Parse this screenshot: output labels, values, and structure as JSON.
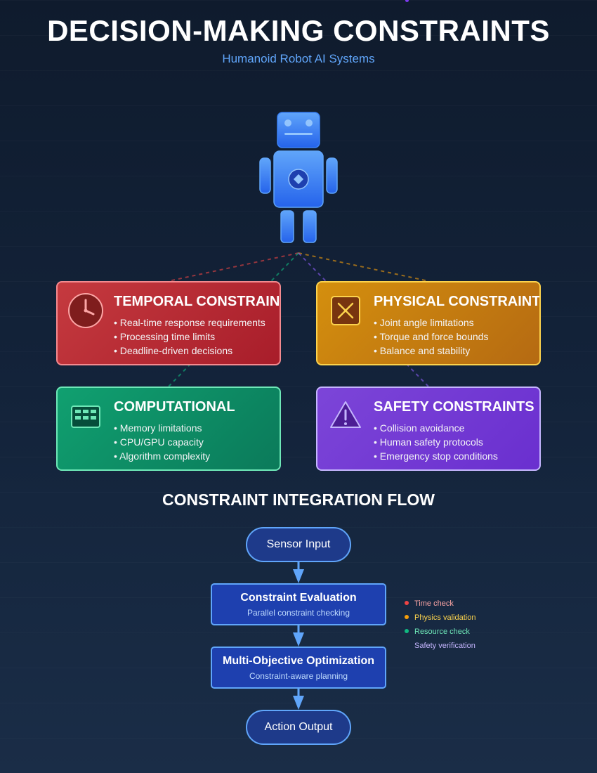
{
  "header": {
    "title": "DECISION-MAKING CONSTRAINTS",
    "subtitle": "Humanoid Robot AI Systems"
  },
  "colors": {
    "temporal": "#ef4444",
    "physical": "#f59e0b",
    "computational": "#10b981",
    "safety": "#8b5cf6",
    "flow_accent": "#60a5fa"
  },
  "cards": {
    "temporal": {
      "title": "TEMPORAL CONSTRAINTS",
      "icon": "clock-icon",
      "items": [
        "Real-time response requirements",
        "Processing time limits",
        "Deadline-driven decisions"
      ]
    },
    "physical": {
      "title": "PHYSICAL CONSTRAINTS",
      "icon": "joint-cross-icon",
      "items": [
        "Joint angle limitations",
        "Torque and force bounds",
        "Balance and stability"
      ]
    },
    "computational": {
      "title": "COMPUTATIONAL",
      "icon": "memory-chip-icon",
      "items": [
        "Memory limitations",
        "CPU/GPU capacity",
        "Algorithm complexity"
      ]
    },
    "safety": {
      "title": "SAFETY CONSTRAINTS",
      "icon": "warning-icon",
      "items": [
        "Collision avoidance",
        "Human safety protocols",
        "Emergency stop conditions"
      ]
    }
  },
  "flow": {
    "heading": "CONSTRAINT INTEGRATION FLOW",
    "sensor_input": "Sensor Input",
    "evaluation": {
      "title": "Constraint Evaluation",
      "subtitle": "Parallel constraint checking"
    },
    "optimization": {
      "title": "Multi-Objective Optimization",
      "subtitle": "Constraint-aware planning"
    },
    "action_output": "Action Output"
  },
  "legend": [
    {
      "label": "Time check",
      "color": "#ef4444"
    },
    {
      "label": "Physics validation",
      "color": "#f59e0b"
    },
    {
      "label": "Resource check",
      "color": "#10b981"
    },
    {
      "label": "Safety verification",
      "color": "#8b5cf6"
    }
  ]
}
